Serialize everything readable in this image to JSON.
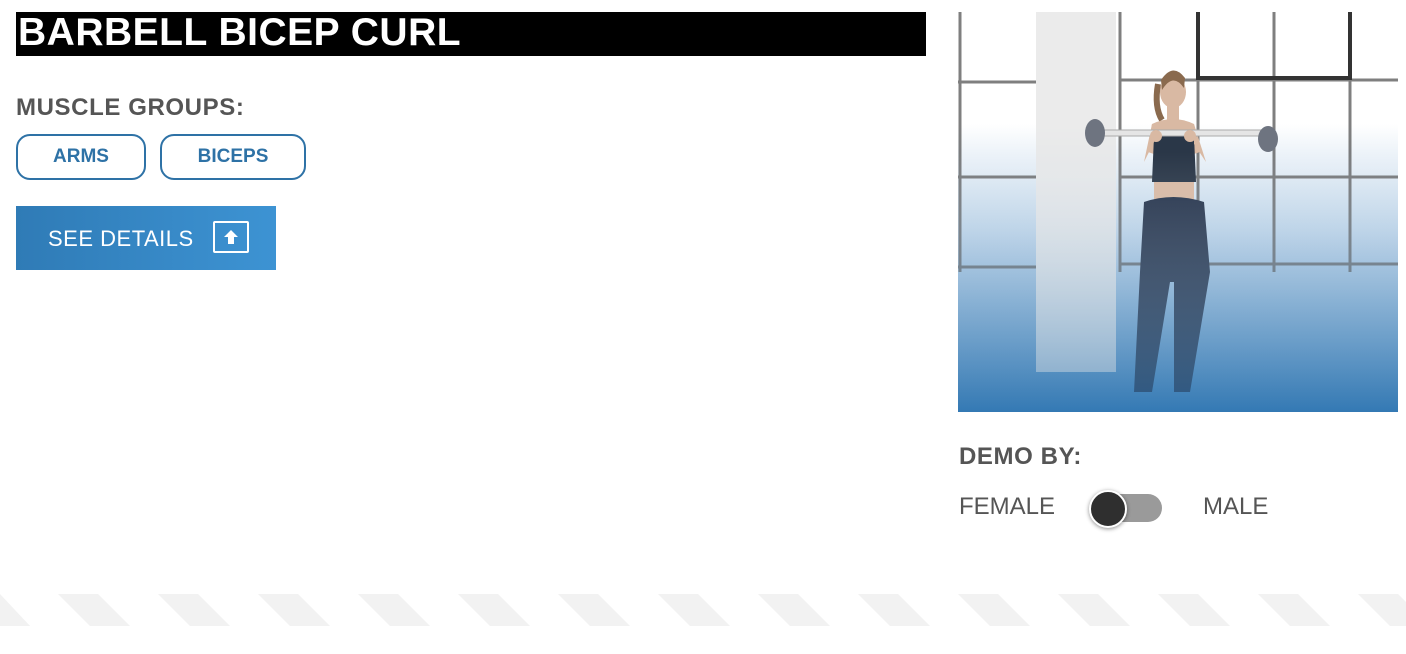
{
  "exercise": {
    "title": "BARBELL BICEP CURL"
  },
  "muscle_groups": {
    "label": "MUSCLE GROUPS:",
    "tags": [
      "ARMS",
      "BICEPS"
    ]
  },
  "details_button": {
    "label": "SEE DETAILS",
    "icon": "upload-arrow-icon"
  },
  "demo": {
    "label": "DEMO BY:",
    "female_label": "FEMALE",
    "male_label": "MALE",
    "selected": "FEMALE"
  },
  "colors": {
    "accent": "#2e72a6",
    "button_gradient_start": "#2f7bb6",
    "button_gradient_end": "#3d93d3",
    "title_background": "#000000",
    "label_gray": "#555555"
  }
}
